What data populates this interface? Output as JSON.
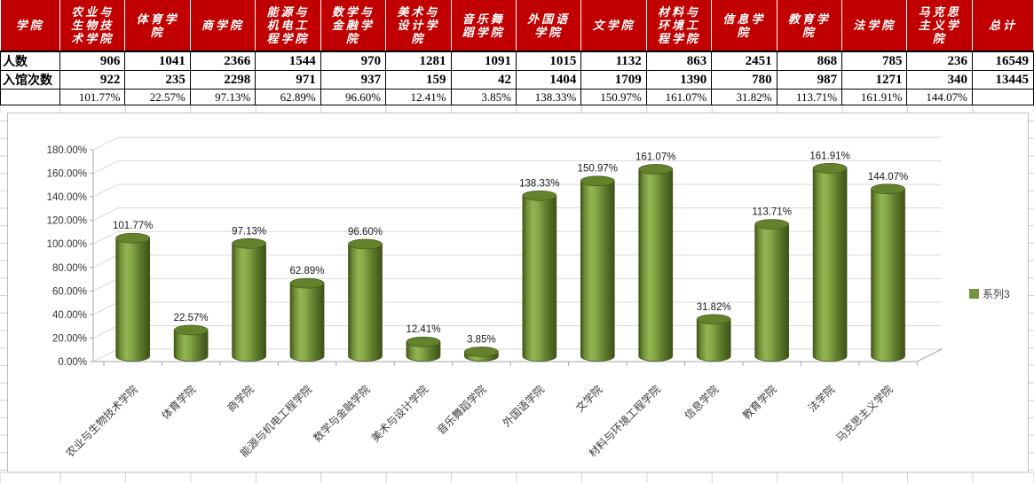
{
  "colors": {
    "header_bg": "#C00000",
    "header_text": "#FFFFFF",
    "bar_green": "#77933C",
    "bar_outline": "#42581C",
    "gridline": "#D9D9D9",
    "chart_border": "#BDBDBD",
    "sheet_gridline": "#D0D0D0"
  },
  "table": {
    "corner_label": "学院",
    "row_label_people": "人数",
    "row_label_visits": "入馆次数",
    "columns": [
      {
        "name": "农业与生物技术学院",
        "people": "906",
        "visits": "922",
        "percent": "101.77%"
      },
      {
        "name": "体育学院",
        "people": "1041",
        "visits": "235",
        "percent": "22.57%"
      },
      {
        "name": "商学院",
        "people": "2366",
        "visits": "2298",
        "percent": "97.13%"
      },
      {
        "name": "能源与机电工程学院",
        "people": "1544",
        "visits": "971",
        "percent": "62.89%"
      },
      {
        "name": "数学与金融学院",
        "people": "970",
        "visits": "937",
        "percent": "96.60%"
      },
      {
        "name": "美术与设计学院",
        "people": "1281",
        "visits": "159",
        "percent": "12.41%"
      },
      {
        "name": "音乐舞蹈学院",
        "people": "1091",
        "visits": "42",
        "percent": "3.85%"
      },
      {
        "name": "外国语学院",
        "people": "1015",
        "visits": "1404",
        "percent": "138.33%"
      },
      {
        "name": "文学院",
        "people": "1132",
        "visits": "1709",
        "percent": "150.97%"
      },
      {
        "name": "材料与环境工程学院",
        "people": "863",
        "visits": "1390",
        "percent": "161.07%"
      },
      {
        "name": "信息学院",
        "people": "2451",
        "visits": "780",
        "percent": "31.82%"
      },
      {
        "name": "教育学院",
        "people": "868",
        "visits": "987",
        "percent": "113.71%"
      },
      {
        "name": "法学院",
        "people": "785",
        "visits": "1271",
        "percent": "161.91%"
      },
      {
        "name": "马克思主义学院",
        "people": "236",
        "visits": "340",
        "percent": "144.07%"
      },
      {
        "name": "总计",
        "people": "16549",
        "visits": "13445",
        "percent": ""
      }
    ]
  },
  "chart_data": {
    "type": "bar",
    "subtype": "3d-cylinder",
    "title": "",
    "xlabel": "",
    "ylabel": "",
    "categories": [
      "农业与生物技术学院",
      "体育学院",
      "商学院",
      "能源与机电工程学院",
      "数学与金融学院",
      "美术与设计学院",
      "音乐舞蹈学院",
      "外国语学院",
      "文学院",
      "材料与环境工程学院",
      "信息学院",
      "教育学院",
      "法学院",
      "马克思主义学院"
    ],
    "series": [
      {
        "name": "系列3",
        "values": [
          101.77,
          22.57,
          97.13,
          62.89,
          96.6,
          12.41,
          3.85,
          138.33,
          150.97,
          161.07,
          31.82,
          113.71,
          161.91,
          144.07
        ],
        "labels": [
          "101.77%",
          "22.57%",
          "97.13%",
          "62.89%",
          "96.60%",
          "12.41%",
          "3.85%",
          "138.33%",
          "150.97%",
          "161.07%",
          "31.82%",
          "113.71%",
          "161.91%",
          "144.07%"
        ]
      }
    ],
    "ylim": [
      0,
      180
    ],
    "yticks": [
      "0.00%",
      "20.00%",
      "40.00%",
      "60.00%",
      "80.00%",
      "100.00%",
      "120.00%",
      "140.00%",
      "160.00%",
      "180.00%"
    ],
    "grid": true,
    "legend_position": "right"
  }
}
